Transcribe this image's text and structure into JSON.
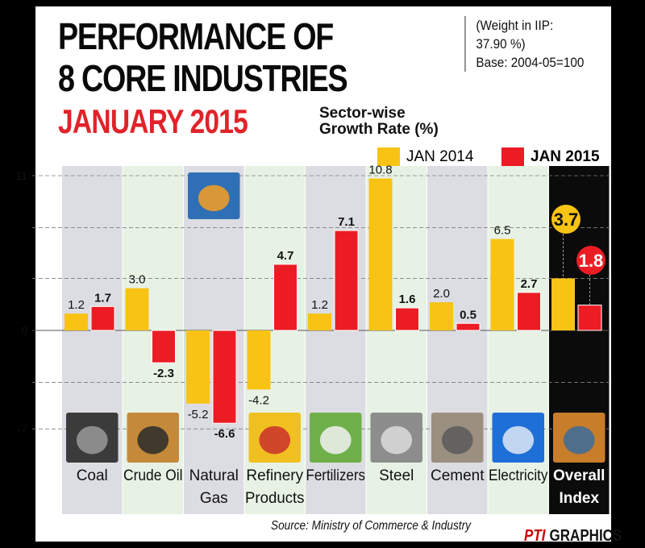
{
  "header": {
    "title_line1": "PERFORMANCE OF",
    "title_line2": "8 CORE INDUSTRIES",
    "period": "JANUARY 2015",
    "note_line1": "(Weight in IIP:",
    "note_line2": "37.90 %)",
    "note_line3": "Base: 2004-05=100",
    "subtitle_line1": "Sector-wise",
    "subtitle_line2": "Growth Rate (%)"
  },
  "legend": {
    "jan2014": "JAN 2014",
    "jan2015": "JAN 2015"
  },
  "colors": {
    "jan2014": "#f8c315",
    "jan2015": "#ec1c24",
    "column_grey": "#dcdde2",
    "column_green": "#e7f2e5",
    "overall_bg": "#0b0b0b",
    "gridline": "#7f7f7f"
  },
  "chart_data": {
    "type": "bar",
    "title": "Sector-wise Growth Rate (%)",
    "xlabel": "",
    "ylabel": "",
    "ylim": [
      -7,
      11
    ],
    "yticks": [
      11,
      0,
      -7
    ],
    "grid": true,
    "legend_position": "top-right",
    "categories": [
      [
        "Coal"
      ],
      [
        "Crude Oil"
      ],
      [
        "Natural",
        "Gas"
      ],
      [
        "Refinery",
        "Products"
      ],
      [
        "Fertilizers"
      ],
      [
        "Steel"
      ],
      [
        "Cement"
      ],
      [
        "Electricity"
      ],
      [
        "Overall",
        "Index"
      ]
    ],
    "category_icons": [
      "coal-photo-icon",
      "oil-pump-photo-icon",
      "gas-flare-photo-icon",
      "fuel-nozzle-photo-icon",
      "fertilizer-sacks-photo-icon",
      "steel-rods-photo-icon",
      "cement-photo-icon",
      "light-bulb-photo-icon",
      "overall-index-photo-icon"
    ],
    "series": [
      {
        "name": "JAN 2014",
        "values": [
          1.2,
          3.0,
          -5.2,
          -4.2,
          1.2,
          10.8,
          2.0,
          6.5,
          3.7
        ],
        "labels": [
          "1.2",
          "3.0",
          "-5.2",
          "-4.2",
          "1.2",
          "10.8",
          "2.0",
          "6.5",
          "3.7"
        ]
      },
      {
        "name": "JAN 2015",
        "values": [
          1.7,
          -2.3,
          -6.6,
          4.7,
          7.1,
          1.6,
          0.5,
          2.7,
          1.8
        ],
        "labels": [
          "1.7",
          "-2.3",
          "-6.6",
          "4.7",
          "7.1",
          "1.6",
          "0.5",
          "2.7",
          "1.8"
        ]
      }
    ]
  },
  "footer": {
    "source": "Source: Ministry of Commerce & Industry",
    "brand_prefix": "PTI",
    "brand": "GRAPHICS"
  }
}
